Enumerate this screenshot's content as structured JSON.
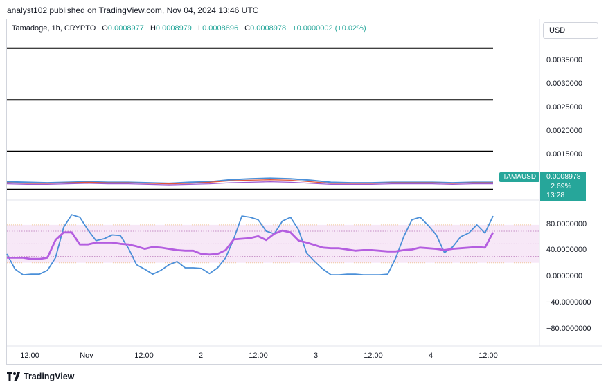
{
  "header": {
    "publisher_line": "analyst102 published on TradingView.com, Nov 04, 2024 13:46 UTC"
  },
  "legend": {
    "symbol": "Tamadoge, 1h, CRYPTO",
    "open_label": "O",
    "open": "0.0008977",
    "high_label": "H",
    "high": "0.0008979",
    "low_label": "L",
    "low": "0.0008896",
    "close_label": "C",
    "close": "0.0008978",
    "change": "+0.0000002 (+0.02%)"
  },
  "currency_button": "USD",
  "price_label": {
    "symbol": "TAMAUSD",
    "price": "0.0008978",
    "change_pct": "−2.69%",
    "countdown": "13:28"
  },
  "footer": {
    "brand": "TradingView"
  },
  "colors": {
    "accent": "#26a69a",
    "rsi_fast": "#4a8fd8",
    "rsi_slow": "#b45ee0",
    "band_fill": "#f7e8f7",
    "horizontal_lines": "#000000"
  },
  "chart_data": [
    {
      "type": "line",
      "title": "",
      "y_tick_labels": [
        "0.0035000",
        "0.0030000",
        "0.0025000",
        "0.0020000",
        "0.0015000"
      ],
      "ylim": [
        0.00065,
        0.0039
      ],
      "x_tick_labels": [
        "12:00",
        "Nov",
        "12:00",
        "2",
        "12:00",
        "3",
        "12:00",
        "4",
        "12:00"
      ],
      "horizontal_levels": [
        0.0035,
        0.0025,
        0.0015,
        0.00076
      ],
      "series": [
        {
          "values": [
            0.00091,
            0.0009,
            0.00089,
            0.0009,
            0.00091,
            0.0009,
            0.0009,
            0.00089,
            0.00088,
            0.0009,
            0.00091,
            0.00095,
            0.00097,
            0.00098,
            0.00097,
            0.00094,
            0.0009,
            0.00089,
            0.00089,
            0.0009,
            0.0009,
            0.0009,
            0.00089,
            0.0009,
            0.0009
          ]
        },
        {
          "values": [
            0.00089,
            0.00088,
            0.00088,
            0.00089,
            0.0009,
            0.00089,
            0.00089,
            0.00088,
            0.00087,
            0.00088,
            0.0009,
            0.00093,
            0.00094,
            0.00095,
            0.00094,
            0.00091,
            0.00088,
            0.00088,
            0.00088,
            0.00089,
            0.00089,
            0.00089,
            0.00088,
            0.00089,
            0.00089
          ]
        },
        {
          "values": [
            0.00087,
            0.00086,
            0.00086,
            0.00087,
            0.00088,
            0.00087,
            0.00087,
            0.00086,
            0.00085,
            0.00086,
            0.00087,
            0.00089,
            0.0009,
            0.00091,
            0.0009,
            0.00088,
            0.00086,
            0.00086,
            0.00086,
            0.00087,
            0.00087,
            0.00087,
            0.00086,
            0.00087,
            0.00087
          ]
        }
      ]
    },
    {
      "type": "line",
      "title": "",
      "y_tick_labels": [
        "80.0000000",
        "40.0000000",
        "0.0000000",
        "−40.0000000",
        "−80.0000000"
      ],
      "ylim": [
        -105,
        105
      ],
      "band": [
        20,
        80
      ],
      "guide_levels": [
        70,
        50,
        30
      ],
      "x": [
        0,
        2,
        4,
        6,
        8,
        10,
        12,
        14,
        16,
        18,
        20,
        22,
        24,
        26,
        28,
        30,
        32,
        34,
        36,
        38,
        40,
        42,
        44,
        46,
        48,
        50,
        52,
        54,
        56,
        58,
        60,
        62,
        64,
        66,
        68,
        70,
        72,
        74,
        76,
        78,
        80,
        82,
        84,
        86,
        88,
        90,
        92,
        94,
        96,
        98,
        100,
        102,
        104,
        106,
        108,
        110,
        112,
        114,
        116,
        118,
        120
      ],
      "series": [
        {
          "values": [
            34,
            10,
            1,
            2,
            2,
            8,
            28,
            76,
            96,
            92,
            72,
            55,
            58,
            64,
            63,
            43,
            17,
            10,
            2,
            8,
            17,
            22,
            12,
            12,
            11,
            3,
            12,
            28,
            58,
            94,
            92,
            88,
            70,
            66,
            86,
            92,
            72,
            35,
            22,
            10,
            1,
            1,
            2,
            2,
            1,
            1,
            1,
            2,
            28,
            62,
            88,
            92,
            79,
            64,
            36,
            45,
            61,
            67,
            80,
            67,
            94
          ]
        },
        {
          "values": [
            28,
            28,
            28,
            26,
            26,
            28,
            56,
            68,
            68,
            49,
            49,
            52,
            52,
            52,
            50,
            49,
            46,
            42,
            45,
            44,
            42,
            40,
            39,
            39,
            34,
            33,
            34,
            40,
            57,
            58,
            59,
            62,
            56,
            66,
            71,
            68,
            55,
            52,
            48,
            44,
            43,
            43,
            41,
            39,
            40,
            40,
            39,
            38,
            38,
            40,
            41,
            44,
            43,
            42,
            40,
            42,
            43,
            44,
            45,
            44,
            68
          ]
        }
      ]
    }
  ]
}
